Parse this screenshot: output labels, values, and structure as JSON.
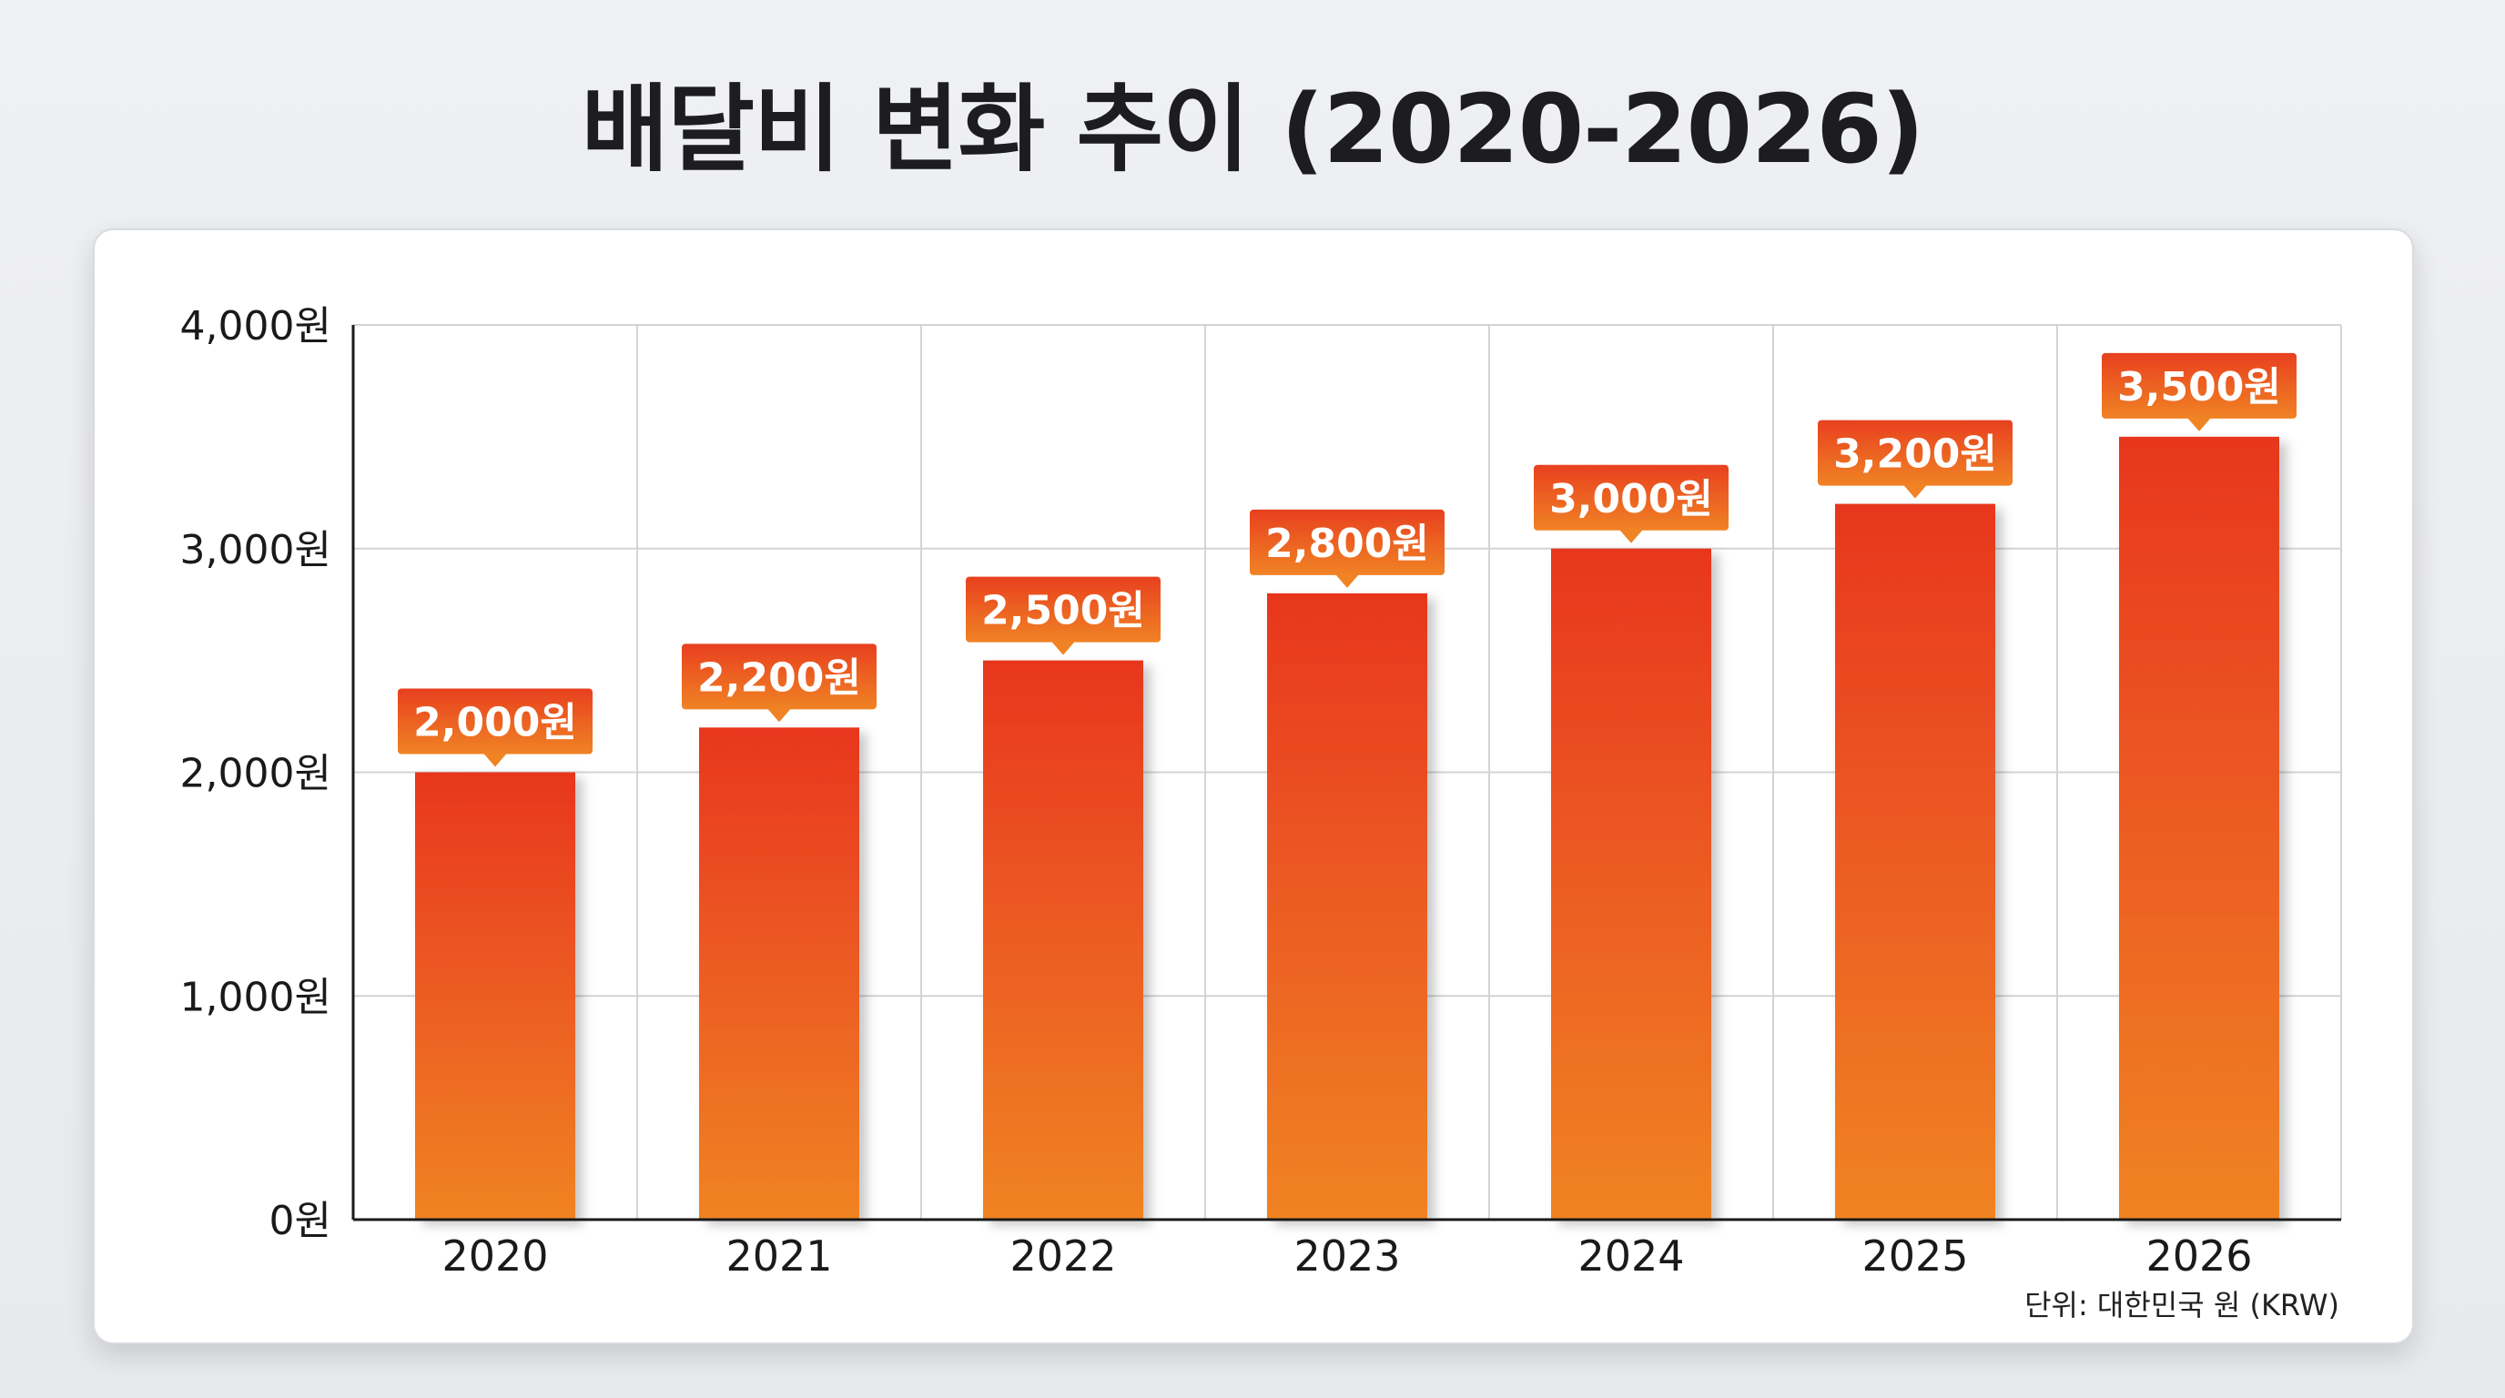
{
  "title": "배달비 변화 추이 (2020-2026)",
  "unit_note": "단위: 대한민국 원 (KRW)",
  "colors": {
    "bar_top": "#e8361f",
    "bar_bottom": "#f08322",
    "label_top": "#e8401f",
    "label_bottom": "#f08324",
    "grid": "#d4d4d4",
    "axis": "#1a1a1a"
  },
  "chart_data": {
    "type": "bar",
    "title": "배달비 변화 추이 (2020-2026)",
    "categories": [
      "2020",
      "2021",
      "2022",
      "2023",
      "2024",
      "2025",
      "2026"
    ],
    "values": [
      2000,
      2200,
      2500,
      2800,
      3000,
      3200,
      3500
    ],
    "value_labels": [
      "2,000원",
      "2,200원",
      "2,500원",
      "2,800원",
      "3,000원",
      "3,200원",
      "3,500원"
    ],
    "ylim": [
      0,
      4000
    ],
    "yticks": [
      0,
      1000,
      2000,
      3000,
      4000
    ],
    "ytick_labels": [
      "0원",
      "1,000원",
      "2,000원",
      "3,000원",
      "4,000원"
    ],
    "xlabel": "",
    "ylabel": "",
    "grid": true,
    "legend": "none"
  }
}
